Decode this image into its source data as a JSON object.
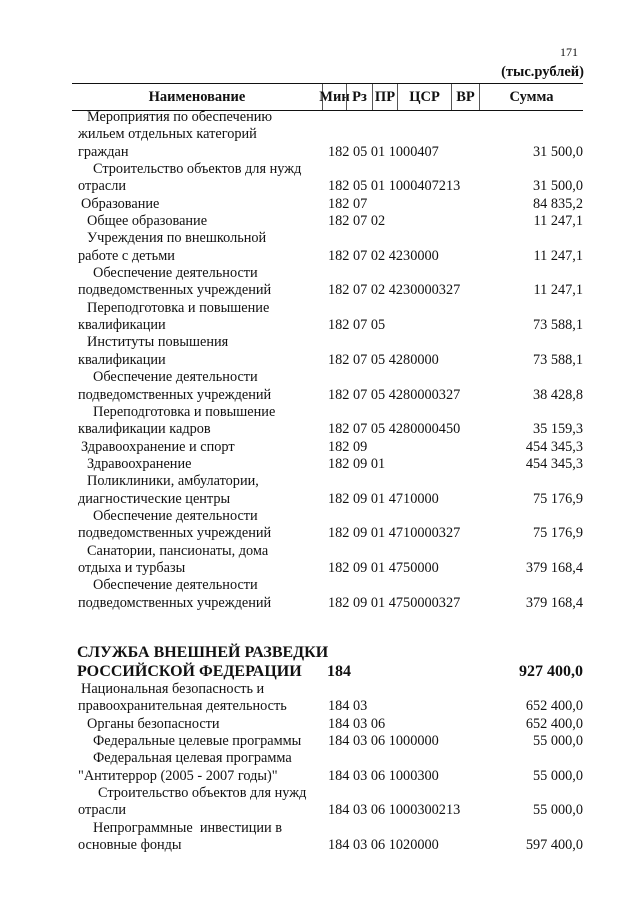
{
  "page_number": "171",
  "units": "(тыс.рублей)",
  "columns": [
    "Наименование",
    "Мин",
    "Рз",
    "ПР",
    "ЦСР",
    "ВР",
    "Сумма"
  ],
  "rows": [
    {
      "level": 1,
      "name": [
        "Мероприятия по обеспечению",
        "жильем отдельных категорий",
        "граждан"
      ],
      "code": "182 05 01 1000407",
      "sum": "31 500,0"
    },
    {
      "level": 2,
      "name": [
        "Строительство объектов для нужд",
        "отрасли"
      ],
      "code": "182 05 01 1000407213",
      "sum": "31 500,0"
    },
    {
      "level": 0,
      "name": [
        "Образование"
      ],
      "code": "182 07",
      "sum": "84 835,2"
    },
    {
      "level": 1,
      "name": [
        "Общее образование"
      ],
      "code": "182 07 02",
      "sum": "11 247,1"
    },
    {
      "level": 1,
      "name": [
        "Учреждения по внешкольной",
        "работе с детьми"
      ],
      "code": "182 07 02 4230000",
      "sum": "11 247,1"
    },
    {
      "level": 2,
      "name": [
        "Обеспечение деятельности",
        "подведомственных учреждений"
      ],
      "code": "182 07 02 4230000327",
      "sum": "11 247,1"
    },
    {
      "level": 1,
      "name": [
        "Переподготовка и повышение",
        "квалификации"
      ],
      "code": "182 07 05",
      "sum": "73 588,1"
    },
    {
      "level": 1,
      "name": [
        "Институты повышения",
        "квалификации"
      ],
      "code": "182 07 05 4280000",
      "sum": "73 588,1"
    },
    {
      "level": 2,
      "name": [
        "Обеспечение деятельности",
        "подведомственных учреждений"
      ],
      "code": "182 07 05 4280000327",
      "sum": "38 428,8"
    },
    {
      "level": 2,
      "name": [
        "Переподготовка и повышение",
        "квалификации кадров"
      ],
      "code": "182 07 05 4280000450",
      "sum": "35 159,3"
    },
    {
      "level": 0,
      "name": [
        "Здравоохранение и спорт"
      ],
      "code": "182 09",
      "sum": "454 345,3"
    },
    {
      "level": 1,
      "name": [
        "Здравоохранение"
      ],
      "code": "182 09 01",
      "sum": "454 345,3"
    },
    {
      "level": 1,
      "name": [
        "Поликлиники, амбулатории,",
        "диагностические центры"
      ],
      "code": "182 09 01 4710000",
      "sum": "75 176,9"
    },
    {
      "level": 2,
      "name": [
        "Обеспечение деятельности",
        "подведомственных учреждений"
      ],
      "code": "182 09 01 4710000327",
      "sum": "75 176,9"
    },
    {
      "level": 1,
      "name": [
        "Санатории, пансионаты, дома",
        "отдыха и турбазы"
      ],
      "code": "182 09 01 4750000",
      "sum": "379 168,4"
    },
    {
      "level": 2,
      "name": [
        "Обеспечение деятельности",
        "подведомственных учреждений"
      ],
      "code": "182 09 01 4750000327",
      "sum": "379 168,4"
    },
    {
      "level": 0,
      "bold": true,
      "name": [
        "СЛУЖБА ВНЕШНЕЙ РАЗВЕДКИ",
        "РОССИЙСКОЙ ФЕДЕРАЦИИ"
      ],
      "code": "184",
      "sum": "927 400,0"
    },
    {
      "level": 0,
      "name": [
        "Национальная безопасность и",
        "правоохранительная деятельность"
      ],
      "code": "184 03",
      "sum": "652 400,0"
    },
    {
      "level": 1,
      "name": [
        "Органы безопасности"
      ],
      "code": "184 03 06",
      "sum": "652 400,0"
    },
    {
      "level": 2,
      "name": [
        "Федеральные целевые программы"
      ],
      "code": "184 03 06 1000000",
      "sum": "55 000,0"
    },
    {
      "level": 2,
      "name": [
        "Федеральная целевая программа",
        "\"Антитеррор (2005 - 2007 годы)\""
      ],
      "code": "184 03 06 1000300",
      "sum": "55 000,0"
    },
    {
      "level": 3,
      "name": [
        "Строительство объектов для нужд",
        "отрасли"
      ],
      "code": "184 03 06 1000300213",
      "sum": "55 000,0"
    },
    {
      "level": 2,
      "name": [
        "Непрограммные  инвестиции в",
        "основные фонды"
      ],
      "code": "184 03 06 1020000",
      "sum": "597 400,0"
    }
  ]
}
